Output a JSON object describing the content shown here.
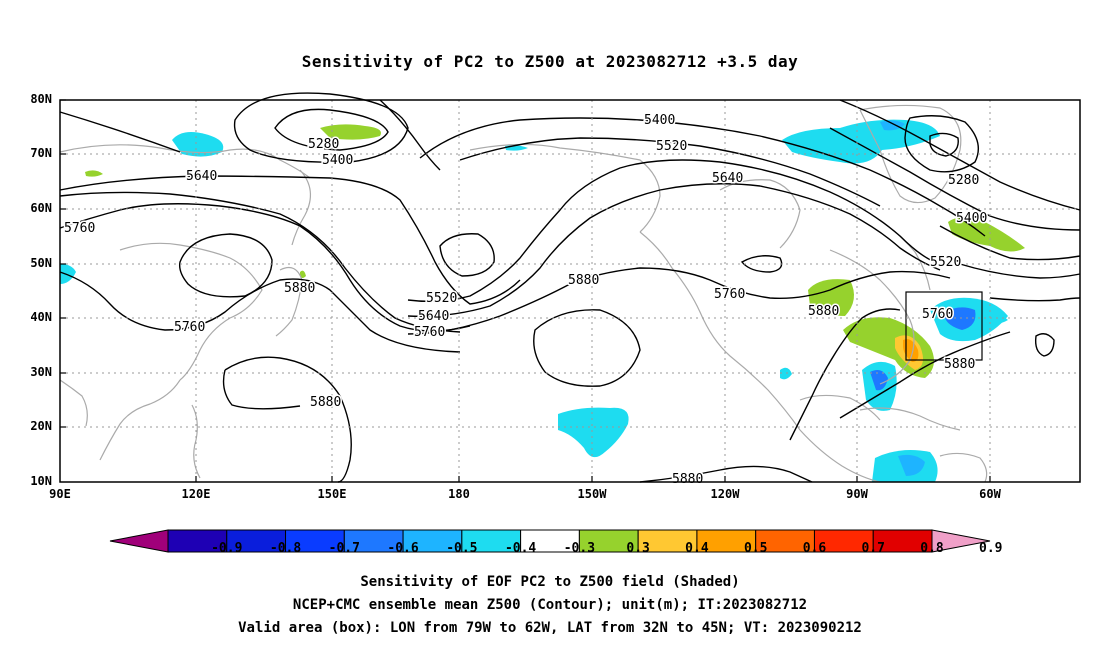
{
  "title": "Sensitivity of PC2 to Z500 at 2023082712 +3.5 day",
  "lat_labels": [
    "80N",
    "70N",
    "60N",
    "50N",
    "40N",
    "30N",
    "20N",
    "10N"
  ],
  "lon_labels": [
    "90E",
    "120E",
    "150E",
    "180",
    "150W",
    "120W",
    "90W",
    "60W"
  ],
  "contour_labels": {
    "c5280a": "5280",
    "c5400a": "5400",
    "c5640a": "5640",
    "c5760a": "5760",
    "c5880a": "5880",
    "c5760b": "5760",
    "c5880b": "5880",
    "c5400b": "5400",
    "c5520a": "5520",
    "c5640b": "5640",
    "c5880c": "5880",
    "c5520b": "5520",
    "c5640c": "5640",
    "c5760c": "5760",
    "c5760d": "5760",
    "c5880d": "5880",
    "c5280b": "5280",
    "c5400c": "5400",
    "c5520c": "5520",
    "c5760e": "5760",
    "c5880e": "5880",
    "c5880f": "5880"
  },
  "colorbar": {
    "labels": [
      "-0.9",
      "-0.8",
      "-0.7",
      "-0.6",
      "-0.5",
      "-0.4",
      "-0.3",
      "0.3",
      "0.4",
      "0.5",
      "0.6",
      "0.7",
      "0.8",
      "0.9"
    ],
    "colors": [
      "#a0007a",
      "#1e00b4",
      "#0a1edc",
      "#0a3cff",
      "#1e78ff",
      "#1eb4ff",
      "#1edcf0",
      "#ffffff",
      "#96d22d",
      "#ffc832",
      "#ffa000",
      "#ff6400",
      "#ff2800",
      "#e10000",
      "#f0a0c8"
    ]
  },
  "footer": {
    "line1": "Sensitivity of EOF PC2 to Z500 field (Shaded)",
    "line2": "NCEP+CMC ensemble mean Z500 (Contour); unit(m); IT:2023082712",
    "line3": "Valid area (box): LON from 79W to 62W, LAT from 32N to 45N; VT: 2023090212"
  }
}
